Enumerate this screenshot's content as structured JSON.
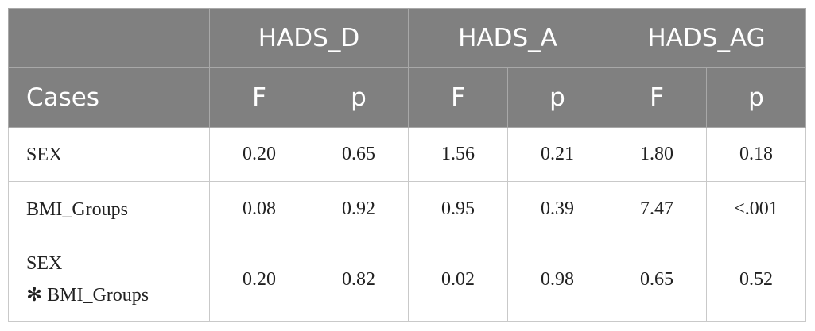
{
  "table": {
    "groups": [
      "HADS_D",
      "HADS_A",
      "HADS_AG"
    ],
    "header": [
      "Cases",
      "F",
      "p",
      "F",
      "p",
      "F",
      "p"
    ],
    "rows": [
      [
        [
          "SEX"
        ],
        "0.20",
        "0.65",
        "1.56",
        "0.21",
        "1.80",
        "0.18"
      ],
      [
        [
          "BMI_Groups"
        ],
        "0.08",
        "0.92",
        "0.95",
        "0.39",
        "7.47",
        "<.001"
      ],
      [
        [
          "SEX",
          "✻ BMI_Groups"
        ],
        "0.20",
        "0.82",
        "0.02",
        "0.98",
        "0.65",
        "0.52"
      ]
    ]
  }
}
